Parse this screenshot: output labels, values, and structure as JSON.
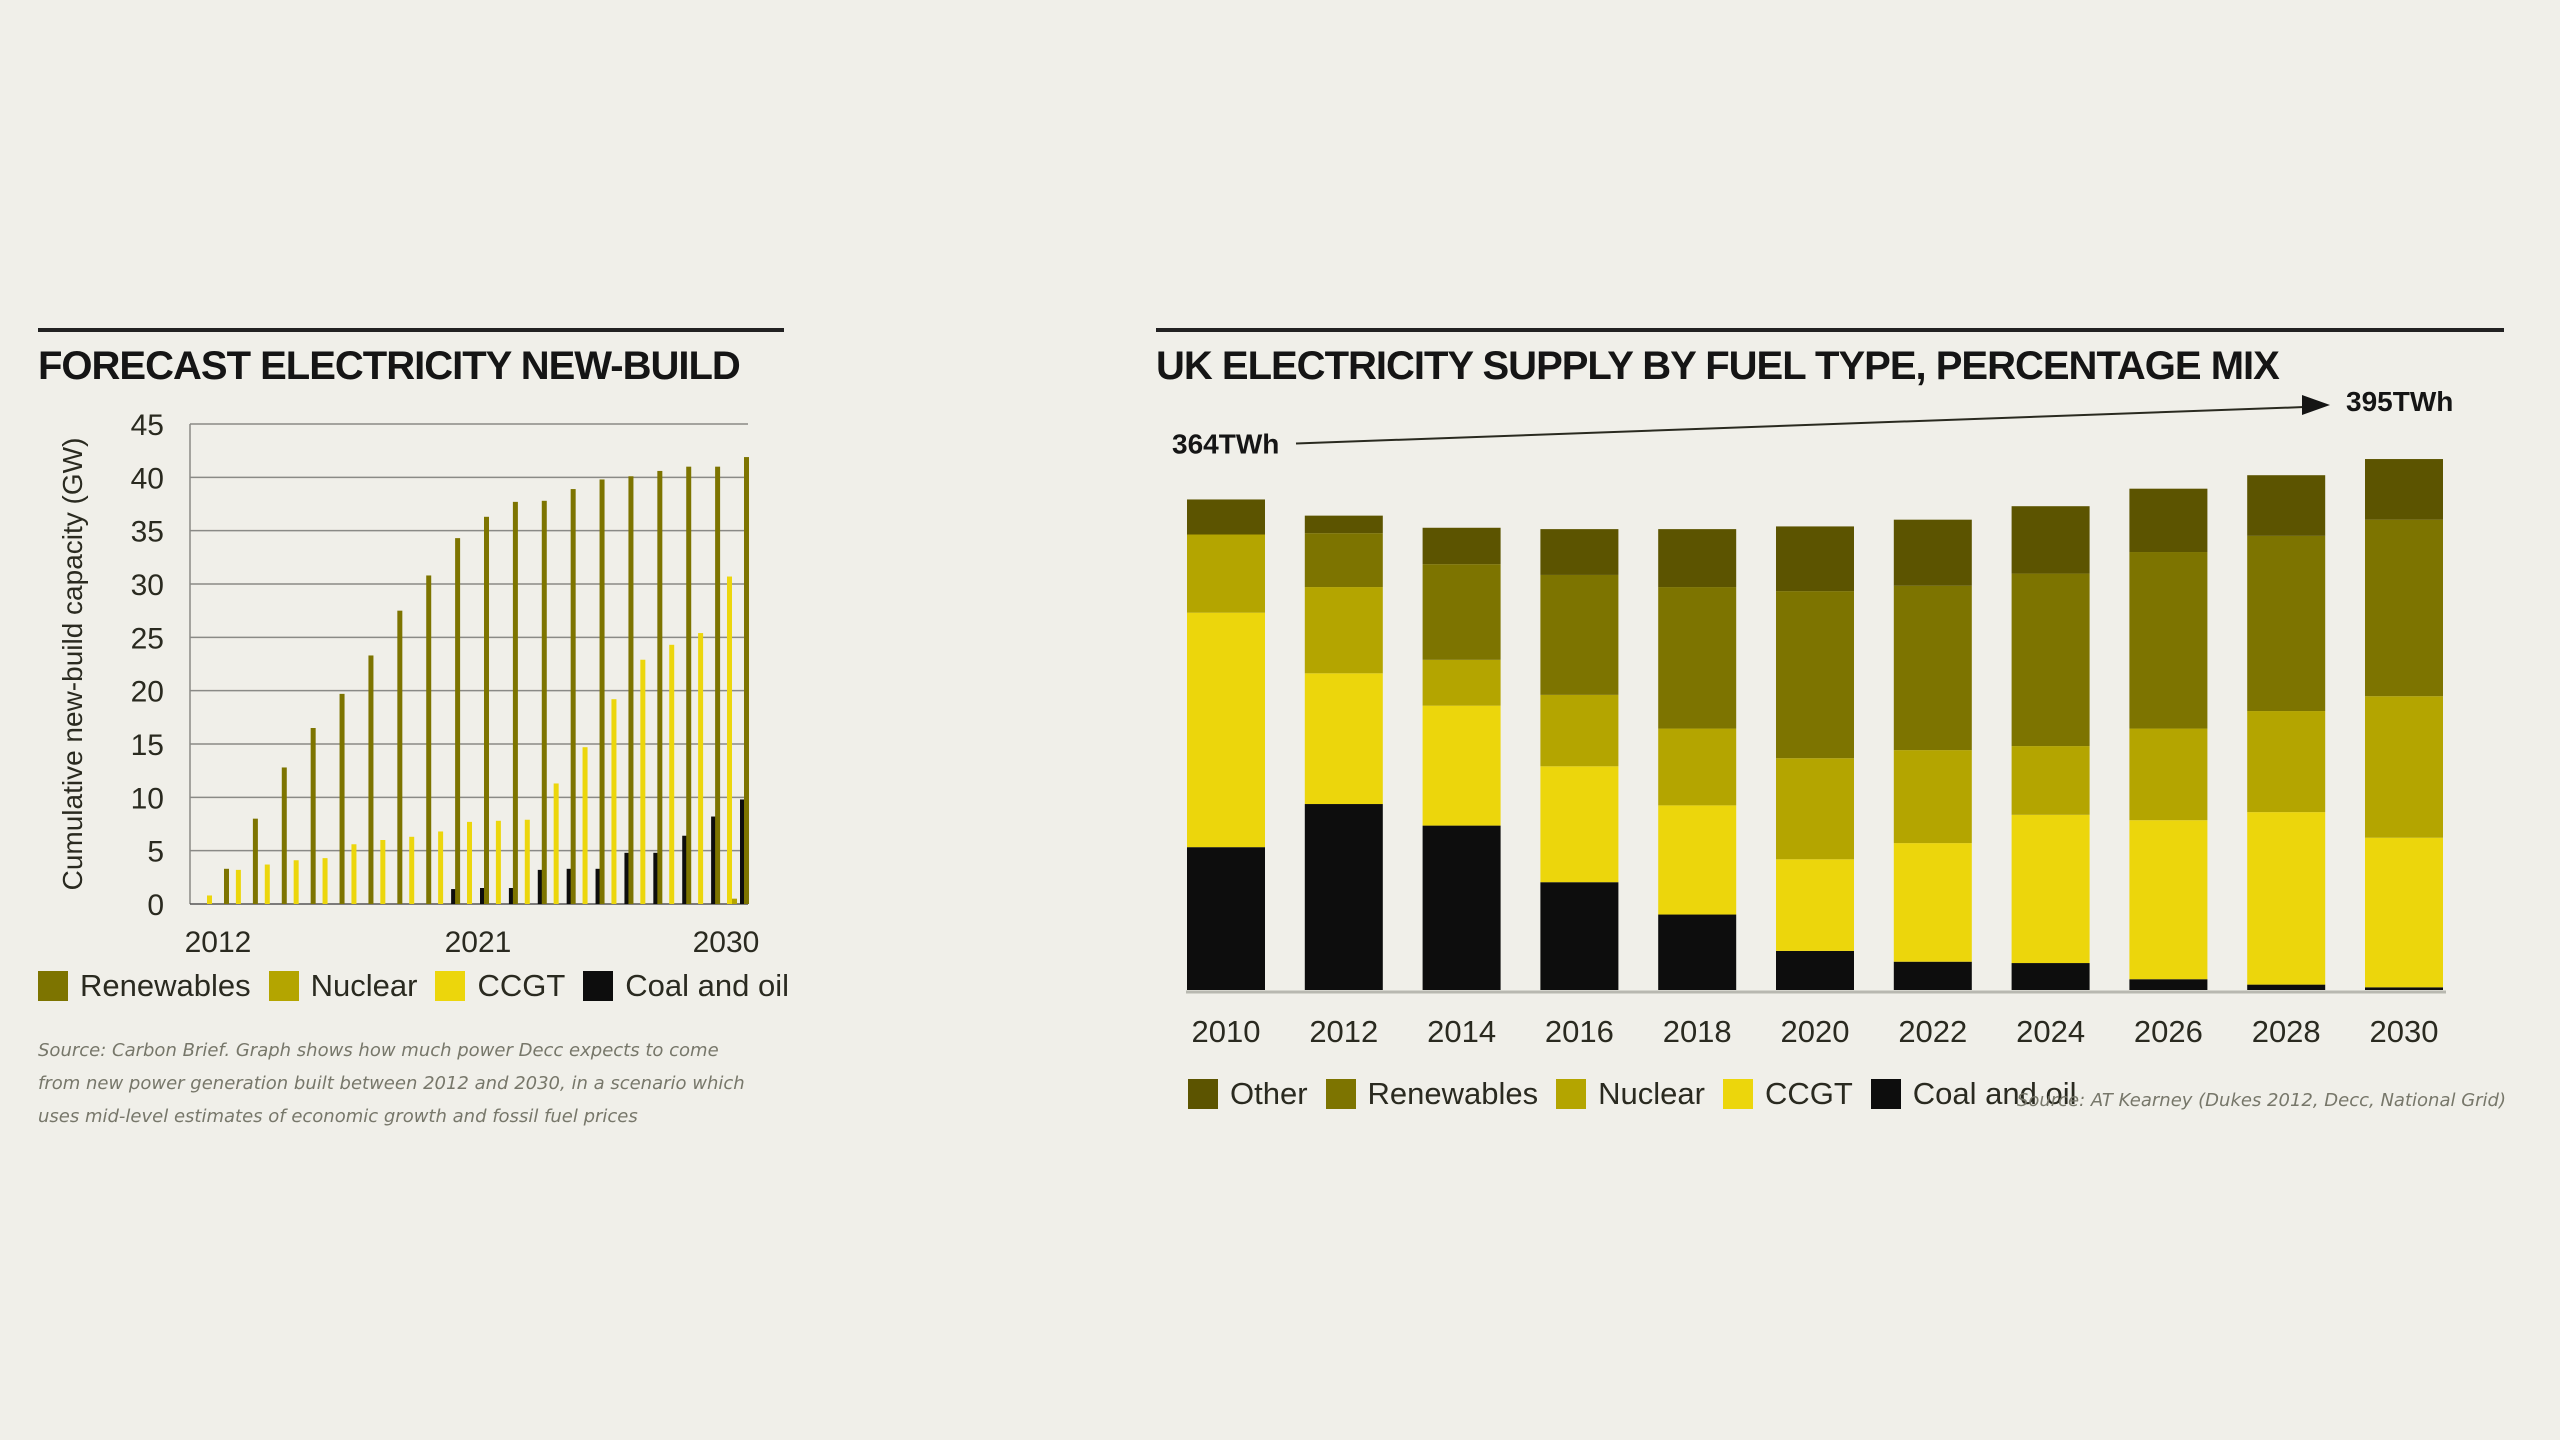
{
  "palette": {
    "background": "#f0efe9",
    "other": "#5c5400",
    "renewables": "#7d7400",
    "nuclear": "#b4a500",
    "ccgt": "#ecd60c",
    "coal_oil": "#0d0d0d",
    "grid": "#8a8a86"
  },
  "chart_data": [
    {
      "type": "bar",
      "title": "FORECAST ELECTRICITY NEW-BUILD",
      "ylabel": "Cumulative new-build capacity (GW)",
      "xlabel": "",
      "ylim": [
        0,
        45
      ],
      "yticks": [
        0,
        5,
        10,
        15,
        20,
        25,
        30,
        35,
        40,
        45
      ],
      "grid": true,
      "legend_position": "bottom",
      "categories": [
        2012,
        2013,
        2014,
        2015,
        2016,
        2017,
        2018,
        2019,
        2020,
        2021,
        2022,
        2023,
        2024,
        2025,
        2026,
        2027,
        2028,
        2029,
        2030
      ],
      "tick_labels": [
        {
          "category": 2012,
          "label": "2012"
        },
        {
          "category": 2021,
          "label": "2021"
        },
        {
          "category": 2030,
          "label": "2030"
        }
      ],
      "series": [
        {
          "name": "Renewables",
          "color_key": "renewables",
          "values": [
            3.3,
            8,
            12.8,
            16.5,
            19.7,
            23.3,
            27.5,
            30.8,
            34.3,
            36.3,
            37.7,
            37.8,
            38.9,
            39.8,
            40.1,
            40.6,
            41,
            41,
            41.9
          ]
        },
        {
          "name": "Nuclear",
          "color_key": "nuclear",
          "values": [
            0,
            0,
            0,
            0,
            0,
            0,
            0,
            0,
            0,
            0,
            0,
            0,
            0,
            0,
            0,
            0,
            0,
            0,
            0.5
          ]
        },
        {
          "name": "CCGT",
          "color_key": "ccgt",
          "values": [
            0.8,
            3.2,
            3.7,
            4.1,
            4.3,
            5.6,
            6,
            6.3,
            6.8,
            7.7,
            7.8,
            7.9,
            11.3,
            14.7,
            19.2,
            22.9,
            24.3,
            25.4,
            30.7
          ]
        },
        {
          "name": "Coal and oil",
          "color_key": "coal_oil",
          "values": [
            0,
            0,
            0,
            0,
            0,
            0,
            0,
            0,
            1.4,
            1.5,
            1.5,
            3.2,
            3.3,
            3.3,
            4.8,
            4.8,
            6.4,
            8.2,
            9.8
          ]
        }
      ],
      "source": "Source: Carbon Brief. Graph shows how much power Decc expects to come from new power generation built between 2012 and 2030, in a scenario which uses mid-level estimates of economic growth and fossil fuel prices"
    },
    {
      "type": "bar",
      "stacked": true,
      "title": "UK ELECTRICITY SUPPLY BY FUEL TYPE, PERCENTAGE MIX",
      "xlabel": "",
      "ylabel": "",
      "unit": "TWh",
      "ylim": [
        0,
        420
      ],
      "grid": false,
      "legend_position": "bottom",
      "categories": [
        "2010",
        "2012",
        "2014",
        "2016",
        "2018",
        "2020",
        "2022",
        "2024",
        "2026",
        "2028",
        "2030"
      ],
      "annotations": {
        "start_label": "364TWh",
        "end_label": "395TWh"
      },
      "series": [
        {
          "name": "Coal and oil",
          "color_key": "coal_oil",
          "values": [
            106,
            138,
            122,
            80,
            56,
            29,
            21,
            20,
            8,
            4,
            2
          ]
        },
        {
          "name": "CCGT",
          "color_key": "ccgt",
          "values": [
            174,
            97,
            89,
            86,
            81,
            68,
            88,
            110,
            118,
            128,
            111
          ]
        },
        {
          "name": "Nuclear",
          "color_key": "nuclear",
          "values": [
            58,
            64,
            34,
            53,
            57,
            75,
            69,
            51,
            68,
            75,
            105
          ]
        },
        {
          "name": "Renewables",
          "color_key": "renewables",
          "values": [
            0,
            40,
            71,
            89,
            105,
            124,
            122,
            128,
            131,
            130,
            131
          ]
        },
        {
          "name": "Other",
          "color_key": "other",
          "values": [
            26,
            13,
            27,
            34,
            43,
            48,
            49,
            50,
            47,
            45,
            45
          ]
        }
      ],
      "source": "Source: AT Kearney (Dukes 2012, Decc, National Grid)"
    }
  ],
  "left_legend": [
    {
      "label": "Renewables",
      "color_key": "renewables"
    },
    {
      "label": "Nuclear",
      "color_key": "nuclear"
    },
    {
      "label": "CCGT",
      "color_key": "ccgt"
    },
    {
      "label": "Coal and oil",
      "color_key": "coal_oil"
    }
  ],
  "right_legend": [
    {
      "label": "Other",
      "color_key": "other"
    },
    {
      "label": "Renewables",
      "color_key": "renewables"
    },
    {
      "label": "Nuclear",
      "color_key": "nuclear"
    },
    {
      "label": "CCGT",
      "color_key": "ccgt"
    },
    {
      "label": "Coal and oil",
      "color_key": "coal_oil"
    }
  ]
}
